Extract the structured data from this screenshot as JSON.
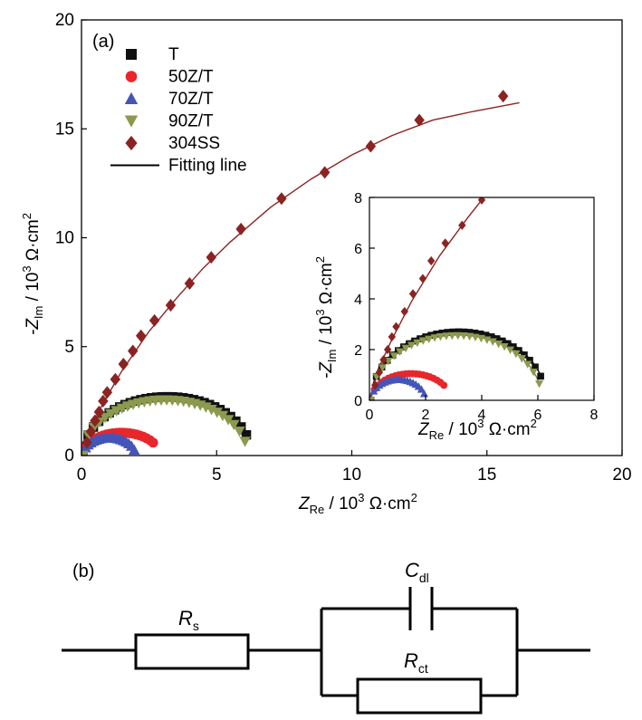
{
  "main_chart": {
    "panel_label": "(a)",
    "x_title": {
      "var": "Z",
      "sub": "Re",
      "rest": " / 10",
      "sup": "3",
      "unit": " Ω·cm",
      "sup2": "2"
    },
    "y_title": {
      "var": "-Z",
      "sub": "Im",
      "rest": " / 10",
      "sup": "3",
      "unit": " Ω·cm",
      "sup2": "2"
    }
  },
  "inset_chart": {
    "x_title": {
      "var": "Z",
      "sub": "Re",
      "rest": " / 10",
      "sup": "3",
      "unit": " Ω·cm",
      "sup2": "2"
    },
    "y_title": {
      "var": "-Z",
      "sub": "Im",
      "rest": " / 10",
      "sup": "3",
      "unit": " Ω·cm",
      "sup2": "2"
    }
  },
  "chart_data": [
    {
      "type": "scatter",
      "panel": "(a)",
      "xlim": [
        0,
        20
      ],
      "ylim": [
        0,
        20
      ],
      "xticks": [
        0,
        5,
        10,
        15,
        20
      ],
      "yticks": [
        0,
        5,
        10,
        15,
        20
      ],
      "legend_position": "top-left",
      "series": [
        {
          "name": "T",
          "marker": "square",
          "color": "#111111",
          "fit_color": "#000000",
          "arc": {
            "x0": 0.05,
            "x1": 6.3,
            "peak": 2.7,
            "npts": 32,
            "xmax_shown": 6.1,
            "fit_peak": 2.8
          }
        },
        {
          "name": "50Z/T",
          "marker": "circle",
          "color": "#e8262b",
          "fit_color": "#c81e1e",
          "arc": {
            "x0": 0.05,
            "x1": 2.9,
            "peak": 1.05,
            "npts": 22,
            "xmax_shown": 2.65,
            "fit_peak": 1.05
          }
        },
        {
          "name": "70Z/T",
          "marker": "triangle-up",
          "color": "#4455b8",
          "fit_color": "#2a3a9c",
          "arc": {
            "x0": 0.05,
            "x1": 2.0,
            "peak": 0.82,
            "npts": 20,
            "xmax_shown": 1.95,
            "fit_peak": 0.82
          }
        },
        {
          "name": "90Z/T",
          "marker": "triangle-down",
          "color": "#8c9a4e",
          "fit_color": "#6b7a33",
          "arc": {
            "x0": 0.05,
            "x1": 6.15,
            "peak": 2.55,
            "npts": 30,
            "xmax_shown": 6.05,
            "fit_peak": 2.6
          }
        },
        {
          "name": "304SS",
          "marker": "diamond",
          "color": "#8b2323",
          "fit_color": "#8b2323",
          "points": [
            [
              0.2,
              0.6
            ],
            [
              0.35,
              1.1
            ],
            [
              0.5,
              1.6
            ],
            [
              0.65,
              2.0
            ],
            [
              0.8,
              2.5
            ],
            [
              0.95,
              2.9
            ],
            [
              1.25,
              3.5
            ],
            [
              1.55,
              4.2
            ],
            [
              1.9,
              4.8
            ],
            [
              2.2,
              5.5
            ],
            [
              2.7,
              6.2
            ],
            [
              3.3,
              6.9
            ],
            [
              4.0,
              7.9
            ],
            [
              4.8,
              9.1
            ],
            [
              5.9,
              10.4
            ],
            [
              7.4,
              11.8
            ],
            [
              9.0,
              13.0
            ],
            [
              10.7,
              14.2
            ],
            [
              12.5,
              15.4
            ],
            [
              15.6,
              16.5
            ]
          ],
          "fit": [
            [
              0,
              0
            ],
            [
              0.3,
              1.2
            ],
            [
              0.8,
              2.4
            ],
            [
              1.5,
              3.9
            ],
            [
              2.5,
              5.7
            ],
            [
              3.5,
              7.2
            ],
            [
              4.5,
              8.6
            ],
            [
              5.5,
              9.8
            ],
            [
              7,
              11.4
            ],
            [
              8.5,
              12.7
            ],
            [
              10,
              13.8
            ],
            [
              11.5,
              14.7
            ],
            [
              13,
              15.4
            ],
            [
              14.5,
              15.8
            ],
            [
              16.2,
              16.2
            ]
          ]
        }
      ],
      "fit_legend": "Fitting line"
    },
    {
      "type": "scatter",
      "panel": "inset",
      "xlim": [
        0,
        8
      ],
      "ylim": [
        0,
        8
      ],
      "xticks": [
        0,
        2,
        4,
        6,
        8
      ],
      "yticks": [
        0,
        2,
        4,
        6,
        8
      ],
      "series_ref": "same as panel (a), zoomed"
    }
  ],
  "circuit": {
    "panel_label": "(b)",
    "rs": {
      "var": "R",
      "sub": "s"
    },
    "cdl": {
      "var": "C",
      "sub": "dl"
    },
    "rct": {
      "var": "R",
      "sub": "ct"
    }
  }
}
